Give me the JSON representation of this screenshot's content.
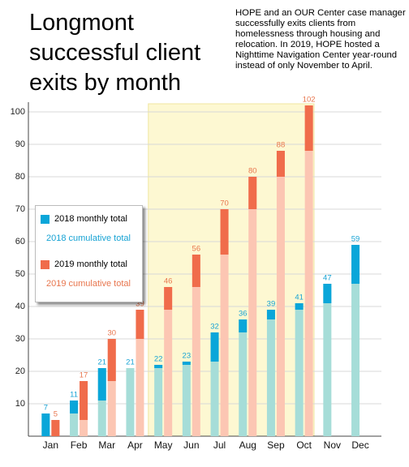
{
  "chart_data": {
    "type": "bar",
    "title": "Longmont successful client exits by month",
    "annotation": "HOPE  and an OUR Center case manager successfully exits clients from homelessness through housing and relocation. In 2019, HOPE hosted a Nighttime Navigation Center year-round instead of only November to April.",
    "categories": [
      "Jan",
      "Feb",
      "Mar",
      "Apr",
      "May",
      "Jun",
      "Jul",
      "Aug",
      "Sep",
      "Oct",
      "Nov",
      "Dec"
    ],
    "series": [
      {
        "name": "2018 monthly total",
        "color": "#0aa6d9",
        "values": [
          7,
          4,
          10,
          0,
          1,
          1,
          9,
          4,
          3,
          2,
          6,
          12
        ]
      },
      {
        "name": "2018 cumulative total",
        "color": "#a6ddd8",
        "label_color": "#17a3d4",
        "values": [
          7,
          11,
          21,
          21,
          22,
          23,
          32,
          36,
          39,
          41,
          47,
          59
        ]
      },
      {
        "name": "2019 monthly total",
        "color": "#f06c4b",
        "values": [
          5,
          12,
          13,
          9,
          7,
          10,
          14,
          10,
          8,
          14,
          null,
          null
        ]
      },
      {
        "name": "2019 cumulative total",
        "color": "#fcc6b3",
        "label_color": "#e8764e",
        "values": [
          5,
          17,
          30,
          39,
          46,
          56,
          70,
          80,
          88,
          102,
          null,
          null
        ]
      }
    ],
    "ylim": [
      0,
      103
    ],
    "yticks": [
      10,
      20,
      30,
      40,
      50,
      60,
      70,
      80,
      90,
      100
    ],
    "grid": true
  }
}
